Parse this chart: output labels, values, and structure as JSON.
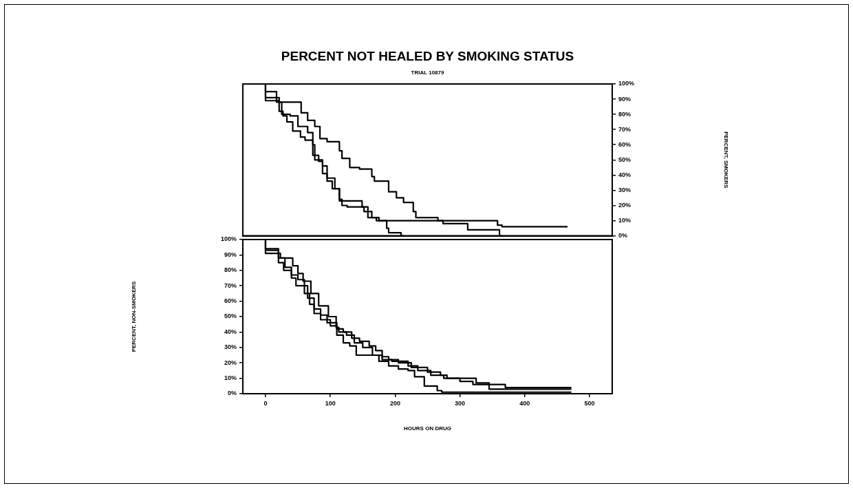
{
  "chart_data": [
    {
      "type": "step",
      "title": "PERCENT NOT HEALED BY SMOKING STATUS",
      "subtitle": "TRIAL 10879",
      "y2label": "PERCENT, SMOKERS",
      "xlim": [
        -35,
        535
      ],
      "y2lim": [
        0,
        100
      ],
      "y2ticks": [
        {
          "value": 0,
          "label": "0%"
        },
        {
          "value": 10,
          "label": "10%"
        },
        {
          "value": 20,
          "label": "20%"
        },
        {
          "value": 30,
          "label": "30%"
        },
        {
          "value": 40,
          "label": "40%"
        },
        {
          "value": 50,
          "label": "50%"
        },
        {
          "value": 60,
          "label": "60%"
        },
        {
          "value": 70,
          "label": "70%"
        },
        {
          "value": 80,
          "label": "80%"
        },
        {
          "value": 90,
          "label": "90%"
        },
        {
          "value": 100,
          "label": "100%"
        }
      ],
      "tick_labels": "y2",
      "line_style": "solid",
      "marker": "none",
      "series": [
        {
          "color": "#000000",
          "axis": "y2",
          "x": [
            0,
            21,
            55,
            65,
            76,
            84,
            95,
            114,
            118,
            130,
            145,
            164,
            168,
            190,
            202,
            213,
            228,
            232,
            266,
            274,
            312,
            361,
            365
          ],
          "values": [
            100,
            89,
            88,
            81,
            76,
            72,
            64,
            62,
            56,
            51,
            45,
            44,
            39,
            36,
            29,
            25,
            22,
            16,
            12,
            10,
            8,
            4,
            0
          ]
        },
        {
          "color": "#000000",
          "axis": "y2",
          "x": [
            0,
            21,
            27,
            33,
            42,
            54,
            61,
            73,
            82,
            88,
            95,
            103,
            114,
            118,
            126,
            152,
            164,
            175,
            187,
            190,
            209,
            213
          ],
          "values": [
            100,
            91,
            82,
            79,
            75,
            69,
            65,
            63,
            53,
            49,
            41,
            36,
            31,
            23,
            20,
            19,
            16,
            12,
            10,
            5,
            2,
            0
          ]
        },
        {
          "color": "#000000",
          "axis": "y2",
          "x": [
            0,
            17,
            25,
            38,
            50,
            65,
            73,
            76,
            88,
            95,
            107,
            114,
            118,
            149,
            158,
            171,
            183,
            358,
            365,
            388,
            466
          ],
          "values": [
            100,
            95,
            88,
            80,
            79,
            72,
            68,
            60,
            50,
            46,
            38,
            31,
            24,
            23,
            19,
            12,
            10,
            10,
            7,
            6,
            6
          ]
        }
      ]
    },
    {
      "type": "step",
      "xlabel": "HOURS ON DRUG",
      "ylabel": "PERCENT, NON-SMOKERS",
      "xlim": [
        -35,
        535
      ],
      "ylim": [
        0,
        100
      ],
      "xticks": [
        0,
        100,
        200,
        300,
        400,
        500
      ],
      "yticks": [
        {
          "value": 0,
          "label": "0%"
        },
        {
          "value": 10,
          "label": "10%"
        },
        {
          "value": 20,
          "label": "20%"
        },
        {
          "value": 30,
          "label": "30%"
        },
        {
          "value": 40,
          "label": "40%"
        },
        {
          "value": 50,
          "label": "50%"
        },
        {
          "value": 60,
          "label": "60%"
        },
        {
          "value": 70,
          "label": "70%"
        },
        {
          "value": 80,
          "label": "80%"
        },
        {
          "value": 90,
          "label": "90%"
        },
        {
          "value": 100,
          "label": "100%"
        }
      ],
      "line_style": "solid",
      "marker": "none",
      "series": [
        {
          "color": "#000000",
          "x": [
            0,
            23,
            42,
            50,
            58,
            70,
            82,
            97,
            109,
            113,
            125,
            137,
            150,
            165,
            180,
            195,
            220,
            235,
            255,
            275,
            300,
            325,
            345,
            370,
            415,
            472
          ],
          "values": [
            100,
            91,
            88,
            83,
            78,
            73,
            65,
            57,
            50,
            43,
            40,
            38,
            33,
            30,
            25,
            22,
            21,
            18,
            15,
            12,
            10,
            10,
            7,
            6,
            4,
            4
          ]
        },
        {
          "color": "#000000",
          "x": [
            0,
            20,
            30,
            40,
            50,
            60,
            65,
            75,
            85,
            95,
            110,
            120,
            133,
            145,
            160,
            170,
            180,
            190,
            205,
            225,
            250,
            270,
            280,
            300,
            320,
            345,
            410,
            472
          ],
          "values": [
            100,
            94,
            88,
            82,
            77,
            74,
            70,
            62,
            55,
            51,
            46,
            42,
            40,
            36,
            34,
            31,
            28,
            24,
            22,
            20,
            17,
            14,
            12,
            10,
            8,
            6,
            3,
            3
          ]
        },
        {
          "color": "#000000",
          "x": [
            0,
            20,
            28,
            40,
            47,
            60,
            68,
            75,
            85,
            100,
            110,
            120,
            130,
            140,
            175,
            190,
            205,
            220,
            230,
            245,
            265,
            272,
            400,
            472
          ],
          "values": [
            100,
            93,
            85,
            80,
            75,
            70,
            65,
            58,
            52,
            48,
            44,
            38,
            33,
            31,
            25,
            21,
            18,
            16,
            15,
            11,
            5,
            2,
            1,
            1
          ]
        }
      ]
    }
  ]
}
